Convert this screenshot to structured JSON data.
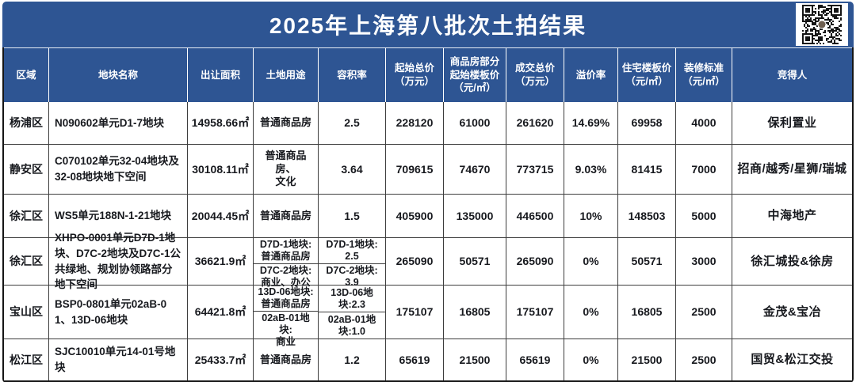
{
  "banner": {
    "title": "2025年上海第八批次土拍结果",
    "background_color": "#2e5593",
    "title_color": "#ffffff",
    "qr_icon": "qr-code"
  },
  "table": {
    "headers": [
      "区域",
      "地块名称",
      "出让面积",
      "土地用途",
      "容积率",
      "起始总价\n（万元）",
      "商品房部分起始楼板价（元/㎡）",
      "成交总价\n（万元）",
      "溢价率",
      "住宅楼板价\n（元/㎡）",
      "装修标准\n（元/㎡）",
      "竞得人"
    ],
    "rows": [
      {
        "region": "杨浦区",
        "name": "N090602单元D1-7地块",
        "area": "14958.66㎡",
        "land_use": "普通商品房",
        "plot_ratio": "2.5",
        "start_price": "228120",
        "start_floor_price": "61000",
        "deal_price": "261620",
        "premium": "14.69%",
        "res_floor_price": "69958",
        "deco_standard": "4000",
        "winner": "保利置业"
      },
      {
        "region": "静安区",
        "name": "C070102单元32-04地块及32-08地块地下空间",
        "area": "30108.11㎡",
        "land_use": "普通商品房、\n文化",
        "plot_ratio": "3.64",
        "start_price": "709615",
        "start_floor_price": "74670",
        "deal_price": "773715",
        "premium": "9.03%",
        "res_floor_price": "81415",
        "deco_standard": "7000",
        "winner": "招商/越秀/星狮/瑞城"
      },
      {
        "region": "徐汇区",
        "name": "WS5单元188N-1-21地块",
        "area": "20044.45㎡",
        "land_use": "普通商品房",
        "plot_ratio": "1.5",
        "start_price": "405900",
        "start_floor_price": "135000",
        "deal_price": "446500",
        "premium": "10%",
        "res_floor_price": "148503",
        "deco_standard": "5000",
        "winner": "中海地产"
      },
      {
        "region": "徐汇区",
        "name": "XHPO-0001单元D7D-1地块、D7C-2地块及D7C-1公共绿地、规划协领路部分地下空间",
        "area": "36621.9㎡",
        "land_use": [
          "D7D-1地块:\n普通商品房",
          "D7C-2地块:\n商业、办公"
        ],
        "plot_ratio": [
          "D7D-1地块: 2.5",
          "D7C-2地块: 3.9"
        ],
        "start_price": "265090",
        "start_floor_price": "50571",
        "deal_price": "265090",
        "premium": "0%",
        "res_floor_price": "50571",
        "deco_standard": "3000",
        "winner": "徐汇城投&徐房"
      },
      {
        "region": "宝山区",
        "name": "BSP0-0801单元02aB-01、13D-06地块",
        "area": "64421.8㎡",
        "land_use": [
          "13D-06地块:\n普通商品房",
          "02aB-01地块:\n商业"
        ],
        "plot_ratio": [
          "13D-06地块:2.3",
          "02aB-01地块:1.0"
        ],
        "start_price": "175107",
        "start_floor_price": "16805",
        "deal_price": "175107",
        "premium": "0%",
        "res_floor_price": "16805",
        "deco_standard": "2500",
        "winner": "金茂&宝冶"
      },
      {
        "region": "松江区",
        "name": "SJC10010单元14-01号地块",
        "area": "25433.7㎡",
        "land_use": "普通商品房",
        "plot_ratio": "1.2",
        "start_price": "65619",
        "start_floor_price": "21500",
        "deal_price": "65619",
        "premium": "0%",
        "res_floor_price": "21500",
        "deco_standard": "2500",
        "winner": "国贸&松江交投"
      }
    ]
  }
}
